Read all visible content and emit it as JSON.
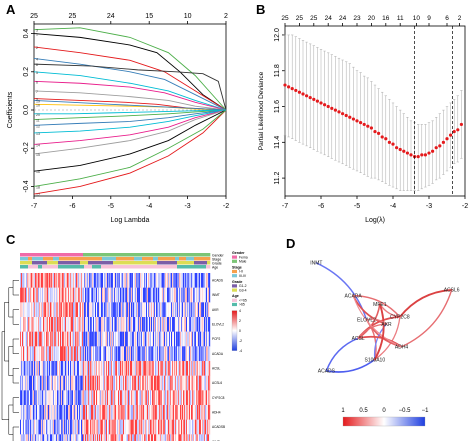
{
  "panels": {
    "A": {
      "label": "A"
    },
    "B": {
      "label": "B"
    },
    "C": {
      "label": "C"
    },
    "D": {
      "label": "D"
    }
  },
  "chart_data": [
    {
      "id": "A",
      "type": "line",
      "xlabel": "Log Lambda",
      "ylabel": "Coefficients",
      "xlim": [
        -7,
        -2
      ],
      "ylim": [
        -0.45,
        0.45
      ],
      "x_ticks": [
        "-7",
        "-6",
        "-5",
        "-4",
        "-3",
        "-2"
      ],
      "y_ticks": [
        "-0.4",
        "-0.2",
        "0.0",
        "0.2",
        "0.4"
      ],
      "top_ticks": [
        "25",
        "25",
        "24",
        "15",
        "10",
        "2"
      ],
      "top_tick_x": [
        -7,
        -6,
        -5,
        -4,
        -3,
        -2
      ],
      "series": [
        {
          "color": "#000000",
          "x": [
            -7,
            -5.8,
            -4.5,
            -3.8,
            -3.2,
            -2.6,
            -2
          ],
          "y": [
            0.4,
            0.38,
            0.34,
            0.3,
            0.2,
            0.08,
            0
          ]
        },
        {
          "color": "#e41a1c",
          "x": [
            -7,
            -5.8,
            -4.5,
            -3.6,
            -2.8,
            -2
          ],
          "y": [
            0.33,
            0.3,
            0.26,
            0.2,
            0.1,
            0
          ]
        },
        {
          "color": "#4daf4a",
          "x": [
            -7,
            -5.8,
            -4.5,
            -3.5,
            -2.8,
            -2
          ],
          "y": [
            0.42,
            0.43,
            0.38,
            0.3,
            0.18,
            0
          ]
        },
        {
          "color": "#377eb8",
          "x": [
            -7,
            -5.8,
            -4.5,
            -3.6,
            -2.8,
            -2
          ],
          "y": [
            0.27,
            0.24,
            0.2,
            0.16,
            0.08,
            0
          ]
        },
        {
          "color": "#00bcd4",
          "x": [
            -7,
            -5.8,
            -4.5,
            -3.5,
            -2.8,
            -2
          ],
          "y": [
            0.2,
            0.18,
            0.14,
            0.1,
            0.05,
            0
          ]
        },
        {
          "color": "#e91e8c",
          "x": [
            -7,
            -5.8,
            -4.5,
            -3.6,
            -2.8,
            -2
          ],
          "y": [
            0.15,
            0.14,
            0.12,
            0.09,
            0.04,
            0
          ]
        },
        {
          "color": "#9e9e9e",
          "x": [
            -7,
            -5.8,
            -4.5,
            -3.5,
            -2.8,
            -2
          ],
          "y": [
            0.1,
            0.09,
            0.07,
            0.05,
            0.02,
            0
          ]
        },
        {
          "color": "#333333",
          "x": [
            -7,
            -5.5,
            -4.3,
            -3.3,
            -2.6,
            -2.2,
            -2
          ],
          "y": [
            0.24,
            0.23,
            0.21,
            0.2,
            0.19,
            0.15,
            0
          ]
        },
        {
          "color": "#e41a1c",
          "x": [
            -7,
            -5.8,
            -4.6,
            -3.8,
            -3.0,
            -2
          ],
          "y": [
            0.06,
            0.05,
            0.04,
            0.03,
            0.01,
            0
          ]
        },
        {
          "color": "#ffc107",
          "x": [
            -7,
            -5.8,
            -4.5,
            -3.5,
            -2.8,
            -2
          ],
          "y": [
            0.03,
            0.025,
            0.02,
            0.015,
            0.005,
            0
          ]
        },
        {
          "color": "#4daf4a",
          "x": [
            -7,
            -5.8,
            -4.5,
            -3.5,
            -2.8,
            -2
          ],
          "y": [
            -0.05,
            -0.04,
            -0.03,
            -0.02,
            -0.01,
            0
          ]
        },
        {
          "color": "#377eb8",
          "x": [
            -7,
            -5.8,
            -4.5,
            -3.5,
            -2.8,
            -2
          ],
          "y": [
            -0.08,
            -0.07,
            -0.06,
            -0.04,
            -0.02,
            0
          ]
        },
        {
          "color": "#00bcd4",
          "x": [
            -7,
            -5.8,
            -4.5,
            -3.5,
            -2.8,
            -2
          ],
          "y": [
            -0.12,
            -0.11,
            -0.09,
            -0.06,
            -0.03,
            0
          ]
        },
        {
          "color": "#e91e8c",
          "x": [
            -7,
            -5.8,
            -4.5,
            -3.5,
            -2.8,
            -2
          ],
          "y": [
            -0.18,
            -0.16,
            -0.13,
            -0.09,
            -0.04,
            0
          ]
        },
        {
          "color": "#9e9e9e",
          "x": [
            -7,
            -5.8,
            -4.5,
            -3.5,
            -2.8,
            -2
          ],
          "y": [
            -0.23,
            -0.2,
            -0.16,
            -0.11,
            -0.05,
            0
          ]
        },
        {
          "color": "#000000",
          "x": [
            -7,
            -5.8,
            -4.5,
            -3.5,
            -2.8,
            -2
          ],
          "y": [
            -0.32,
            -0.29,
            -0.23,
            -0.16,
            -0.08,
            0
          ]
        },
        {
          "color": "#e41a1c",
          "x": [
            -7,
            -5.8,
            -4.5,
            -3.5,
            -2.6,
            -2
          ],
          "y": [
            -0.44,
            -0.4,
            -0.33,
            -0.24,
            -0.12,
            0
          ]
        },
        {
          "color": "#4daf4a",
          "x": [
            -7,
            -5.8,
            -4.5,
            -3.5,
            -2.6,
            -2
          ],
          "y": [
            -0.4,
            -0.36,
            -0.3,
            -0.2,
            -0.1,
            0
          ]
        },
        {
          "color": "#377eb8",
          "x": [
            -7,
            -6,
            -5,
            -4,
            -3,
            -2
          ],
          "y": [
            0.05,
            0.04,
            0.03,
            0.02,
            0.01,
            0
          ]
        },
        {
          "color": "#00bcd4",
          "x": [
            -7,
            -6,
            -5,
            -4,
            -3,
            -2
          ],
          "y": [
            -0.02,
            -0.02,
            -0.015,
            -0.01,
            -0.005,
            0
          ]
        }
      ]
    },
    {
      "id": "B",
      "type": "scatter",
      "xlabel": "Log(λ)",
      "ylabel": "Partial Likelihood Deviance",
      "xlim": [
        -7,
        -2
      ],
      "ylim": [
        11.1,
        12.05
      ],
      "x_ticks": [
        "-7",
        "-6",
        "-5",
        "-4",
        "-3",
        "-2"
      ],
      "y_ticks": [
        "11.2",
        "11.4",
        "11.6",
        "11.8",
        "12.0"
      ],
      "top_ticks": [
        "25",
        "25",
        "25",
        "24",
        "24",
        "23",
        "20",
        "16",
        "11",
        "10",
        "9",
        "6",
        "2"
      ],
      "top_tick_x": [
        -7,
        -6.6,
        -6.2,
        -5.8,
        -5.4,
        -5.0,
        -4.6,
        -4.2,
        -3.8,
        -3.35,
        -3.0,
        -2.5,
        -2.15
      ],
      "vlines": [
        -3.4,
        -2.35
      ],
      "points_x": [
        -7.0,
        -6.9,
        -6.8,
        -6.7,
        -6.6,
        -6.5,
        -6.4,
        -6.3,
        -6.2,
        -6.1,
        -6.0,
        -5.9,
        -5.8,
        -5.7,
        -5.6,
        -5.5,
        -5.4,
        -5.3,
        -5.2,
        -5.1,
        -5.0,
        -4.9,
        -4.8,
        -4.7,
        -4.6,
        -4.5,
        -4.4,
        -4.3,
        -4.2,
        -4.1,
        -4.0,
        -3.9,
        -3.8,
        -3.7,
        -3.6,
        -3.5,
        -3.4,
        -3.3,
        -3.2,
        -3.1,
        -3.0,
        -2.9,
        -2.8,
        -2.7,
        -2.6,
        -2.5,
        -2.4,
        -2.3,
        -2.2,
        -2.1
      ],
      "points_y": [
        11.72,
        11.71,
        11.7,
        11.69,
        11.68,
        11.67,
        11.66,
        11.65,
        11.64,
        11.63,
        11.62,
        11.61,
        11.6,
        11.59,
        11.58,
        11.57,
        11.56,
        11.55,
        11.54,
        11.53,
        11.52,
        11.51,
        11.5,
        11.49,
        11.48,
        11.46,
        11.45,
        11.43,
        11.42,
        11.4,
        11.39,
        11.37,
        11.36,
        11.35,
        11.34,
        11.33,
        11.32,
        11.32,
        11.33,
        11.33,
        11.34,
        11.35,
        11.37,
        11.38,
        11.4,
        11.42,
        11.44,
        11.46,
        11.47,
        11.5
      ],
      "error_upper": [
        12.0,
        12.0,
        12.0,
        11.99,
        11.98,
        11.97,
        11.96,
        11.95,
        11.94,
        11.93,
        11.92,
        11.91,
        11.9,
        11.89,
        11.88,
        11.87,
        11.86,
        11.85,
        11.84,
        11.82,
        11.8,
        11.79,
        11.77,
        11.76,
        11.74,
        11.72,
        11.7,
        11.68,
        11.66,
        11.64,
        11.62,
        11.6,
        11.58,
        11.56,
        11.54,
        11.52,
        11.51,
        11.5,
        11.5,
        11.5,
        11.51,
        11.52,
        11.54,
        11.56,
        11.58,
        11.6,
        11.62,
        11.64,
        11.66,
        11.69
      ],
      "error_lower": [
        11.44,
        11.43,
        11.42,
        11.41,
        11.4,
        11.39,
        11.38,
        11.37,
        11.36,
        11.35,
        11.34,
        11.33,
        11.32,
        11.31,
        11.3,
        11.29,
        11.28,
        11.27,
        11.26,
        11.25,
        11.24,
        11.23,
        11.22,
        11.21,
        11.2,
        11.2,
        11.19,
        11.18,
        11.17,
        11.16,
        11.15,
        11.14,
        11.13,
        11.13,
        11.13,
        11.13,
        11.13,
        11.13,
        11.14,
        11.15,
        11.16,
        11.17,
        11.19,
        11.2,
        11.22,
        11.24,
        11.26,
        11.28,
        11.29,
        11.31
      ],
      "point_color": "#e41a1c"
    },
    {
      "id": "C",
      "type": "heatmap",
      "rows": 12,
      "cols": 190,
      "seed": 7,
      "annotation_rows": [
        {
          "label": "Gender",
          "colors": [
            "#f06ba8",
            "#7cc576"
          ]
        },
        {
          "label": "Stage",
          "colors": [
            "#f7a14c",
            "#7bc8d8"
          ]
        },
        {
          "label": "Grade",
          "colors": [
            "#7b5ea7",
            "#dddd55"
          ]
        },
        {
          "label": "Age",
          "colors": [
            "#f8c3d9",
            "#55bbaa"
          ]
        }
      ],
      "gene_labels": [
        "ACADS",
        "INMT",
        "AKR",
        "ELOVL2",
        "PCP2",
        "ACADA",
        "ACSL",
        "ACSL6",
        "CYP2C8",
        "ADH4",
        "ACADSB",
        "INMT"
      ],
      "legend": {
        "Gender": {
          "title": "Gender",
          "items": [
            {
              "label": "Fema",
              "color": "#f06ba8"
            },
            {
              "label": "Male",
              "color": "#7cc576"
            }
          ]
        },
        "Stage": {
          "title": "Stage",
          "items": [
            {
              "label": "I-II",
              "color": "#f7a14c"
            },
            {
              "label": "III-IV",
              "color": "#7bc8d8"
            }
          ]
        },
        "Grade": {
          "title": "Grade",
          "items": [
            {
              "label": "G1-2",
              "color": "#7b5ea7"
            },
            {
              "label": "G3-4",
              "color": "#dddd55"
            }
          ]
        },
        "Age": {
          "title": "Age",
          "items": [
            {
              "label": "<=65",
              "color": "#f8c3d9"
            },
            {
              "label": ">65",
              "color": "#55bbaa"
            }
          ]
        }
      },
      "scale_ticks": [
        "4",
        "2",
        "0",
        "-2",
        "-4"
      ]
    },
    {
      "id": "D",
      "type": "network",
      "nodes": [
        {
          "label": "INMT",
          "x": 0.14,
          "y": 0.07
        },
        {
          "label": "ACADA",
          "x": 0.36,
          "y": 0.3
        },
        {
          "label": "MFE1",
          "x": 0.52,
          "y": 0.36
        },
        {
          "label": "ACSL6",
          "x": 0.95,
          "y": 0.26
        },
        {
          "label": "CYP2C8",
          "x": 0.64,
          "y": 0.45
        },
        {
          "label": "ELOVL2",
          "x": 0.44,
          "y": 0.47
        },
        {
          "label": "AKR",
          "x": 0.56,
          "y": 0.5
        },
        {
          "label": "ACSL",
          "x": 0.39,
          "y": 0.6
        },
        {
          "label": "ADH4",
          "x": 0.65,
          "y": 0.66
        },
        {
          "label": "S100A10",
          "x": 0.49,
          "y": 0.75
        },
        {
          "label": "ACADS",
          "x": 0.2,
          "y": 0.83
        }
      ],
      "edges": [
        [
          0,
          5,
          -0.6
        ],
        [
          1,
          6,
          0.8
        ],
        [
          1,
          4,
          0.6
        ],
        [
          2,
          4,
          0.5
        ],
        [
          2,
          7,
          0.7
        ],
        [
          3,
          4,
          0.9
        ],
        [
          3,
          8,
          0.6
        ],
        [
          4,
          7,
          0.8
        ],
        [
          4,
          9,
          0.5
        ],
        [
          5,
          8,
          0.7
        ],
        [
          5,
          9,
          0.6
        ],
        [
          6,
          9,
          -0.5
        ],
        [
          7,
          8,
          0.8
        ],
        [
          7,
          10,
          -0.7
        ],
        [
          9,
          10,
          -0.8
        ],
        [
          1,
          8,
          0.4
        ],
        [
          2,
          9,
          0.9
        ],
        [
          6,
          7,
          0.6
        ],
        [
          5,
          6,
          0.5
        ]
      ],
      "color_scale": {
        "ticks": [
          "1",
          "0.5",
          "0",
          "−0.5",
          "−1"
        ],
        "colors": [
          "#e41a1c",
          "#ffffff",
          "#1f3fe0"
        ]
      }
    }
  ]
}
